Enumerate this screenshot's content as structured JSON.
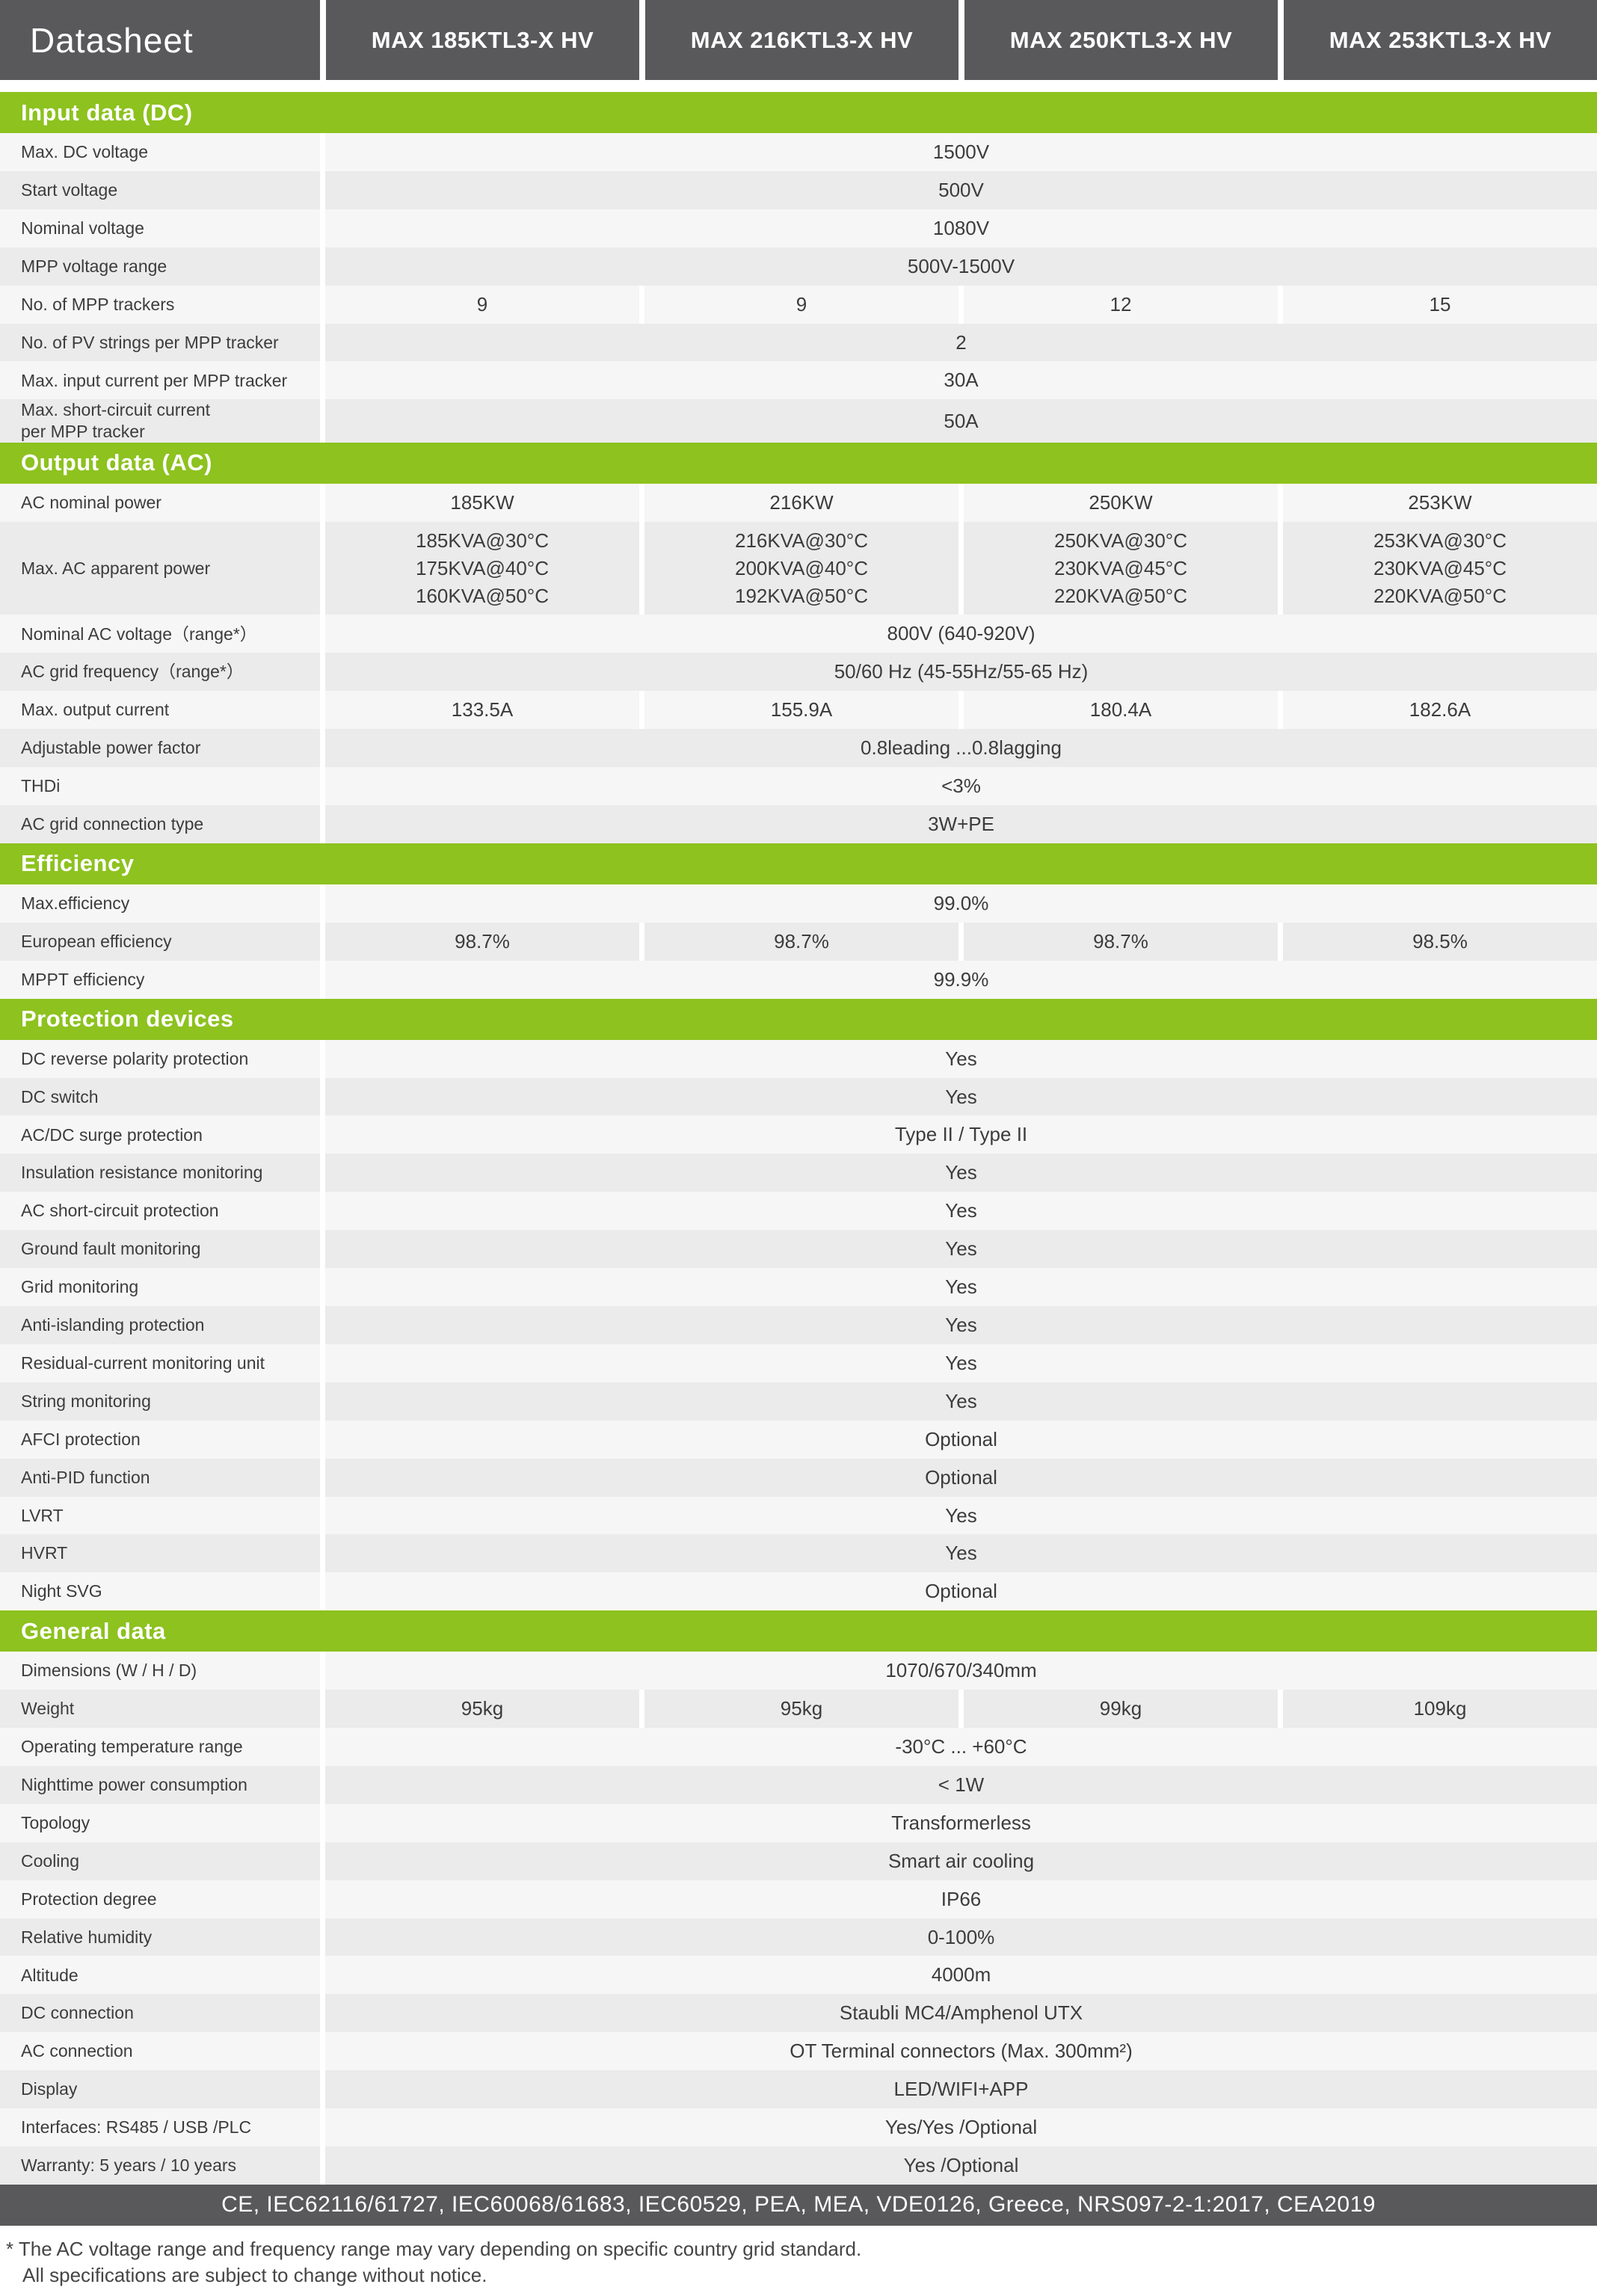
{
  "header": {
    "brand": "Datasheet",
    "models": [
      "MAX 185KTL3-X HV",
      "MAX 216KTL3-X HV",
      "MAX 250KTL3-X HV",
      "MAX 253KTL3-X HV"
    ]
  },
  "colors": {
    "accent_green": "#8DC21F",
    "header_dark_gray": "#59595B",
    "row_light": "#F6F6F6",
    "row_dark": "#EBEBEB"
  },
  "sections": [
    {
      "title": "Input data (DC)",
      "rows": [
        {
          "label": "Max. DC voltage",
          "span": "1500V"
        },
        {
          "label": "Start voltage",
          "span": "500V"
        },
        {
          "label": "Nominal voltage",
          "span": "1080V"
        },
        {
          "label": "MPP voltage range",
          "span": "500V-1500V"
        },
        {
          "label": "No. of MPP trackers",
          "cells": [
            "9",
            "9",
            "12",
            "15"
          ]
        },
        {
          "label": "No. of PV strings per MPP tracker",
          "span": "2"
        },
        {
          "label": "Max. input current per MPP tracker",
          "span": "30A"
        },
        {
          "label": "Max. short-circuit current\nper MPP tracker",
          "span": "50A"
        }
      ]
    },
    {
      "title": "Output data (AC)",
      "rows": [
        {
          "label": "AC nominal power",
          "cells": [
            "185KW",
            "216KW",
            "250KW",
            "253KW"
          ]
        },
        {
          "label": "Max. AC apparent power",
          "cells": [
            "185KVA@30°C\n175KVA@40°C\n160KVA@50°C",
            "216KVA@30°C\n200KVA@40°C\n192KVA@50°C",
            "250KVA@30°C\n230KVA@45°C\n220KVA@50°C",
            "253KVA@30°C\n230KVA@45°C\n220KVA@50°C"
          ]
        },
        {
          "label": "Nominal AC voltage（range*）",
          "span": "800V  (640-920V)"
        },
        {
          "label": "AC grid frequency（range*）",
          "span": "50/60 Hz (45-55Hz/55-65 Hz)"
        },
        {
          "label": "Max. output current",
          "cells": [
            "133.5A",
            "155.9A",
            "180.4A",
            "182.6A"
          ]
        },
        {
          "label": "Adjustable power factor",
          "span": "0.8leading ...0.8lagging"
        },
        {
          "label": "THDi",
          "span": "<3%"
        },
        {
          "label": "AC grid connection type",
          "span": "3W+PE"
        }
      ]
    },
    {
      "title": "Efficiency",
      "rows": [
        {
          "label": "Max.efficiency",
          "span": "99.0%"
        },
        {
          "label": "European efficiency",
          "cells": [
            "98.7%",
            "98.7%",
            "98.7%",
            "98.5%"
          ]
        },
        {
          "label": "MPPT efficiency",
          "span": "99.9%"
        }
      ]
    },
    {
      "title": "Protection devices",
      "rows": [
        {
          "label": "DC reverse polarity protection",
          "span": "Yes"
        },
        {
          "label": "DC switch",
          "span": "Yes"
        },
        {
          "label": "AC/DC surge protection",
          "span": "Type II / Type II"
        },
        {
          "label": "Insulation resistance monitoring",
          "span": "Yes"
        },
        {
          "label": "AC short-circuit protection",
          "span": "Yes"
        },
        {
          "label": "Ground fault monitoring",
          "span": "Yes"
        },
        {
          "label": "Grid monitoring",
          "span": "Yes"
        },
        {
          "label": "Anti-islanding protection",
          "span": "Yes"
        },
        {
          "label": "Residual-current monitoring unit",
          "span": "Yes"
        },
        {
          "label": "String monitoring",
          "span": "Yes"
        },
        {
          "label": "AFCI protection",
          "span": "Optional"
        },
        {
          "label": "Anti-PID function",
          "span": "Optional"
        },
        {
          "label": "LVRT",
          "span": "Yes"
        },
        {
          "label": "HVRT",
          "span": "Yes"
        },
        {
          "label": "Night SVG",
          "span": "Optional"
        }
      ]
    },
    {
      "title": "General data",
      "rows": [
        {
          "label": "Dimensions (W / H / D)",
          "span": "1070/670/340mm"
        },
        {
          "label": "Weight",
          "cells": [
            "95kg",
            "95kg",
            "99kg",
            "109kg"
          ]
        },
        {
          "label": "Operating temperature range",
          "span": "-30°C ... +60°C"
        },
        {
          "label": "Nighttime power consumption",
          "span": "< 1W"
        },
        {
          "label": "Topology",
          "span": "Transformerless"
        },
        {
          "label": "Cooling",
          "span": "Smart air cooling"
        },
        {
          "label": "Protection degree",
          "span": "IP66"
        },
        {
          "label": "Relative humidity",
          "span": "0-100%"
        },
        {
          "label": "Altitude",
          "span": "4000m"
        },
        {
          "label": "DC connection",
          "span": "Staubli MC4/Amphenol UTX"
        },
        {
          "label": "AC connection",
          "span": "OT Terminal connectors (Max. 300mm²)"
        },
        {
          "label": "Display",
          "span": "LED/WIFI+APP"
        },
        {
          "label": "Interfaces: RS485 / USB /PLC",
          "span": "Yes/Yes /Optional"
        },
        {
          "label": "Warranty: 5 years / 10 years",
          "span": "Yes /Optional"
        }
      ]
    }
  ],
  "footer": {
    "certifications": "CE, IEC62116/61727, IEC60068/61683, IEC60529, PEA, MEA, VDE0126, Greece, NRS097-2-1:2017, CEA2019"
  },
  "footnotes": [
    "* The AC voltage range and frequency range may vary depending on specific country grid standard.",
    "All specifications are subject to change without notice."
  ]
}
